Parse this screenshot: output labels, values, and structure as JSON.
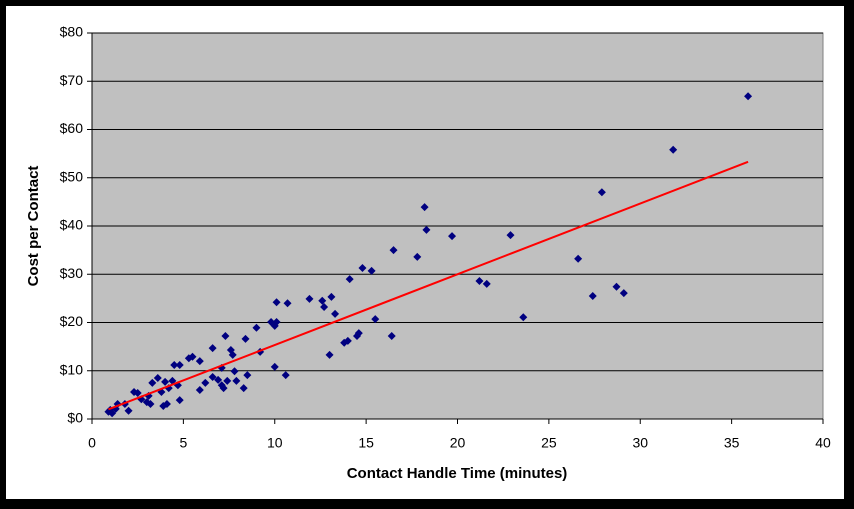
{
  "chart_data": {
    "type": "scatter",
    "y_label": "Cost per Contact",
    "x_label": "Contact Handle Time (minutes)",
    "xlim": [
      0,
      40
    ],
    "xticks": [
      0,
      5,
      10,
      15,
      20,
      25,
      30,
      35,
      40
    ],
    "ylim": [
      0,
      80
    ],
    "yticks": [
      {
        "value": 0,
        "label": "$0"
      },
      {
        "value": 10,
        "label": "$10"
      },
      {
        "value": 20,
        "label": "$20"
      },
      {
        "value": 30,
        "label": "$30"
      },
      {
        "value": 40,
        "label": "$40"
      },
      {
        "value": 50,
        "label": "$50"
      },
      {
        "value": 60,
        "label": "$60"
      },
      {
        "value": 70,
        "label": "$70"
      },
      {
        "value": 80,
        "label": "$80"
      }
    ],
    "grid": true,
    "plot_background": "#c0c0c0",
    "series": [
      {
        "color": "#000080",
        "x": [
          0.9,
          1.0,
          1.1,
          1.3,
          1.4,
          1.8,
          2.0,
          2.3,
          2.5,
          2.7,
          3.0,
          3.1,
          3.2,
          3.3,
          3.6,
          3.8,
          3.9,
          4.0,
          4.1,
          4.2,
          4.4,
          4.5,
          4.7,
          4.8,
          4.8,
          5.3,
          5.5,
          5.9,
          5.9,
          6.2,
          6.6,
          6.6,
          6.9,
          7.1,
          7.1,
          7.2,
          7.3,
          7.4,
          7.6,
          7.7,
          7.8,
          7.9,
          8.3,
          8.4,
          8.5,
          9.0,
          9.2,
          9.8,
          10.0,
          10.0,
          10.1,
          10.1,
          10.6,
          10.7,
          11.9,
          12.6,
          12.7,
          13.0,
          13.1,
          13.3,
          13.8,
          14.0,
          14.1,
          14.5,
          14.6,
          14.8,
          15.3,
          15.5,
          16.4,
          16.5,
          17.8,
          18.2,
          18.3,
          19.7,
          21.2,
          21.6,
          22.9,
          23.6,
          26.6,
          27.4,
          27.9,
          28.7,
          29.1,
          31.8,
          35.9
        ],
        "values": [
          1.5,
          1.9,
          1.2,
          2.1,
          3.1,
          3.1,
          1.7,
          5.6,
          5.4,
          4.1,
          3.5,
          4.8,
          3.1,
          7.5,
          8.5,
          5.6,
          2.7,
          7.7,
          3.1,
          6.4,
          7.9,
          11.2,
          7.0,
          3.9,
          11.2,
          12.6,
          12.9,
          6.0,
          12.0,
          7.5,
          8.7,
          14.7,
          8.1,
          7.0,
          10.6,
          6.4,
          17.2,
          7.9,
          14.3,
          13.3,
          9.9,
          7.9,
          6.4,
          16.6,
          9.1,
          18.9,
          13.9,
          20.1,
          10.8,
          19.3,
          24.2,
          20.1,
          9.1,
          24.0,
          24.9,
          24.5,
          23.2,
          13.3,
          25.3,
          21.8,
          15.8,
          16.2,
          29.0,
          17.2,
          17.8,
          31.3,
          30.7,
          20.7,
          17.2,
          35.0,
          33.6,
          43.9,
          39.2,
          37.9,
          28.6,
          28.0,
          38.1,
          21.1,
          33.2,
          25.5,
          47.0,
          27.4,
          26.1,
          55.8,
          66.9
        ]
      }
    ],
    "trendline": {
      "color": "#ff0000",
      "x": [
        0.9,
        35.9
      ],
      "values": [
        2.0,
        53.3
      ]
    }
  }
}
